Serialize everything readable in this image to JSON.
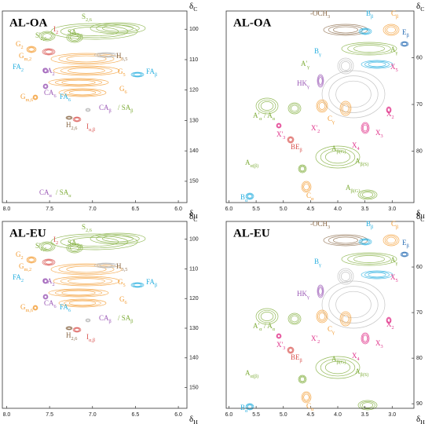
{
  "panels": [
    {
      "title": "AL-OA",
      "x_label": {
        "text": "δ",
        "sub": "H"
      },
      "y_label": {
        "text": "δ",
        "sub": "C"
      },
      "xlim": [
        8.05,
        5.9
      ],
      "ylim": [
        94,
        157
      ],
      "xticks": [
        {
          "value": 8,
          "label": "8.0"
        },
        {
          "value": 7.5,
          "label": "7.5"
        },
        {
          "value": 7,
          "label": "7.0"
        },
        {
          "value": 6.5,
          "label": "6.5"
        },
        {
          "value": 6,
          "label": "6.0"
        }
      ],
      "yticks": [
        100,
        110,
        120,
        130,
        140,
        150
      ],
      "labels": [
        {
          "text": "I",
          "sub": "2",
          "color": "#d9534f"
        },
        {
          "text": "SA",
          "sub": "2,6",
          "color": "#7fad3a"
        },
        {
          "text": "S",
          "sub": "2,6",
          "color": "#7fad3a"
        },
        {
          "text": "S'",
          "sub": "2,6",
          "color": "#7fad3a"
        },
        {
          "text": "G",
          "sub": "2",
          "color": "#f39c33"
        },
        {
          "text": "G",
          "sub": "m,2",
          "color": "#f39c33"
        },
        {
          "text": "FA",
          "sub": "2",
          "color": "#2ab0e0"
        },
        {
          "text": "CA",
          "sub": "2",
          "color": "#9b59b6"
        },
        {
          "text": "CA",
          "sub": "6",
          "color": "#9b59b6"
        },
        {
          "text": "FA",
          "sub": "6",
          "color": "#2ab0e0"
        },
        {
          "text": "H",
          "sub": "3,5",
          "color": "#8b6a48"
        },
        {
          "text": "G",
          "sub": "5",
          "color": "#f39c33"
        },
        {
          "text": "G",
          "sub": "6",
          "color": "#f39c33"
        },
        {
          "text": "FA",
          "sub": "β",
          "color": "#2ab0e0"
        },
        {
          "text": "G",
          "sub": "m,6",
          "color": "#f39c33"
        },
        {
          "text": "CA",
          "sub": "β",
          "color": "#9b59b6"
        },
        {
          "text": "/ SA",
          "sub": "β",
          "color": "#7fad3a"
        },
        {
          "text": "I",
          "sub": "α,β",
          "color": "#d9534f"
        },
        {
          "text": "H",
          "sub": "2,6",
          "color": "#8b6a48"
        },
        {
          "text": "CA",
          "sub": "α",
          "color": "#9b59b6"
        },
        {
          "text": "/ SA",
          "sub": "α",
          "color": "#7fad3a"
        }
      ]
    },
    {
      "title": "AL-OA",
      "x_label": {
        "text": "δ",
        "sub": "H"
      },
      "y_label": {
        "text": "δ",
        "sub": "C"
      },
      "xlim": [
        6.05,
        2.6
      ],
      "ylim": [
        50,
        91
      ],
      "xticks": [
        {
          "value": 6,
          "label": "6.0"
        },
        {
          "value": 5.5,
          "label": "5.5"
        },
        {
          "value": 5,
          "label": "5.0"
        },
        {
          "value": 4.5,
          "label": "4.5"
        },
        {
          "value": 4,
          "label": "4.0"
        },
        {
          "value": 3.5,
          "label": "3.5"
        },
        {
          "value": 3,
          "label": "3.0"
        }
      ],
      "yticks": [
        60,
        70,
        80
      ],
      "labels": [
        {
          "text": "-OCH",
          "sub": "3",
          "color": "#8b6a48"
        },
        {
          "text": "B",
          "sub": "β",
          "color": "#2ab0e0"
        },
        {
          "text": "C",
          "sub": "β",
          "color": "#f39c33"
        },
        {
          "text": "E",
          "sub": "β",
          "color": "#2c6fb5"
        },
        {
          "text": "B",
          "sub": "γ",
          "color": "#2ab0e0"
        },
        {
          "text": "A",
          "sub": "γ",
          "color": "#7fad3a"
        },
        {
          "text": "X",
          "sub": "5",
          "color": "#e0338a"
        },
        {
          "text": "A'",
          "sub": "γ",
          "color": "#7fad3a"
        },
        {
          "text": "HK",
          "sub": "γ",
          "color": "#9b59b6"
        },
        {
          "text": "A'",
          "sub": "α",
          "color": "#7fad3a"
        },
        {
          "text": "/ A",
          "sub": "α",
          "color": "#7fad3a"
        },
        {
          "text": "X",
          "sub": "2",
          "color": "#e0338a"
        },
        {
          "text": "C",
          "sub": "γ",
          "color": "#f39c33"
        },
        {
          "text": "X'",
          "sub": "2",
          "color": "#e0338a"
        },
        {
          "text": "X'",
          "sub": "3",
          "color": "#e0338a"
        },
        {
          "text": "X",
          "sub": "3",
          "color": "#e0338a"
        },
        {
          "text": "X",
          "sub": "4",
          "color": "#e0338a"
        },
        {
          "text": "BE",
          "sub": "β",
          "color": "#d9534f"
        },
        {
          "text": "A",
          "sub": "β(G)",
          "color": "#7fad3a"
        },
        {
          "text": "A",
          "sub": "β(S)",
          "color": "#7fad3a"
        },
        {
          "text": "A",
          "sub": "α(β)",
          "color": "#7fad3a"
        },
        {
          "text": "B",
          "sub": "α",
          "color": "#2ab0e0"
        },
        {
          "text": "C",
          "sub": "α",
          "color": "#f39c33"
        },
        {
          "text": "A",
          "sub": "β(G)",
          "color": "#7fad3a"
        }
      ]
    },
    {
      "title": "AL-EU",
      "x_label": {
        "text": "δ",
        "sub": "H"
      },
      "y_label": {
        "text": "δ",
        "sub": "C"
      },
      "xlim": [
        8.05,
        5.9
      ],
      "ylim": [
        94,
        157
      ],
      "xticks": [
        {
          "value": 8,
          "label": "8.0"
        },
        {
          "value": 7.5,
          "label": "7.5"
        },
        {
          "value": 7,
          "label": "7.0"
        },
        {
          "value": 6.5,
          "label": "6.5"
        },
        {
          "value": 6,
          "label": "6.0"
        }
      ],
      "yticks": [
        100,
        110,
        120,
        130,
        140,
        150
      ],
      "labels": [
        {
          "text": "I",
          "sub": "2",
          "color": "#d9534f"
        },
        {
          "text": "SA",
          "sub": "2,6",
          "color": "#7fad3a"
        },
        {
          "text": "S",
          "sub": "2,6",
          "color": "#7fad3a"
        },
        {
          "text": "S'",
          "sub": "2,6",
          "color": "#7fad3a"
        },
        {
          "text": "G",
          "sub": "2",
          "color": "#f39c33"
        },
        {
          "text": "G",
          "sub": "m,2",
          "color": "#f39c33"
        },
        {
          "text": "FA",
          "sub": "2",
          "color": "#2ab0e0"
        },
        {
          "text": "CA",
          "sub": "2",
          "color": "#9b59b6"
        },
        {
          "text": "CA",
          "sub": "6",
          "color": "#9b59b6"
        },
        {
          "text": "FA",
          "sub": "6",
          "color": "#2ab0e0"
        },
        {
          "text": "H",
          "sub": "3,5",
          "color": "#8b6a48"
        },
        {
          "text": "G",
          "sub": "5",
          "color": "#f39c33"
        },
        {
          "text": "G",
          "sub": "6",
          "color": "#f39c33"
        },
        {
          "text": "FA",
          "sub": "β",
          "color": "#2ab0e0"
        },
        {
          "text": "G",
          "sub": "m,6",
          "color": "#f39c33"
        },
        {
          "text": "CA",
          "sub": "β",
          "color": "#9b59b6"
        },
        {
          "text": "/ SA",
          "sub": "β",
          "color": "#7fad3a"
        },
        {
          "text": "I",
          "sub": "α,β",
          "color": "#d9534f"
        },
        {
          "text": "H",
          "sub": "2,6",
          "color": "#8b6a48"
        }
      ]
    },
    {
      "title": "AL-EU",
      "x_label": {
        "text": "δ",
        "sub": "H"
      },
      "y_label": {
        "text": "δ",
        "sub": "C"
      },
      "xlim": [
        6.05,
        2.6
      ],
      "ylim": [
        50,
        91
      ],
      "xticks": [
        {
          "value": 6,
          "label": "6.0"
        },
        {
          "value": 5.5,
          "label": "5.5"
        },
        {
          "value": 5,
          "label": "5.0"
        },
        {
          "value": 4.5,
          "label": "4.5"
        },
        {
          "value": 4,
          "label": "4.0"
        },
        {
          "value": 3.5,
          "label": "3.5"
        },
        {
          "value": 3,
          "label": "3.0"
        }
      ],
      "yticks": [
        60,
        70,
        80,
        90
      ],
      "labels": [
        {
          "text": "-OCH",
          "sub": "3",
          "color": "#8b6a48"
        },
        {
          "text": "B",
          "sub": "β",
          "color": "#2ab0e0"
        },
        {
          "text": "C",
          "sub": "β",
          "color": "#f39c33"
        },
        {
          "text": "E",
          "sub": "β",
          "color": "#2c6fb5"
        },
        {
          "text": "B",
          "sub": "γ",
          "color": "#2ab0e0"
        },
        {
          "text": "A",
          "sub": "γ",
          "color": "#7fad3a"
        },
        {
          "text": "X",
          "sub": "5",
          "color": "#e0338a"
        },
        {
          "text": "A'",
          "sub": "α",
          "color": "#7fad3a"
        },
        {
          "text": "HK",
          "sub": "γ",
          "color": "#9b59b6"
        },
        {
          "text": "/ A",
          "sub": "α",
          "color": "#7fad3a"
        },
        {
          "text": "X",
          "sub": "2",
          "color": "#e0338a"
        },
        {
          "text": "C",
          "sub": "γ",
          "color": "#f39c33"
        },
        {
          "text": "X'",
          "sub": "2",
          "color": "#e0338a"
        },
        {
          "text": "X'",
          "sub": "3",
          "color": "#e0338a"
        },
        {
          "text": "X",
          "sub": "3",
          "color": "#e0338a"
        },
        {
          "text": "X",
          "sub": "4",
          "color": "#e0338a"
        },
        {
          "text": "BE",
          "sub": "β",
          "color": "#d9534f"
        },
        {
          "text": "A",
          "sub": "β(G)",
          "color": "#7fad3a"
        },
        {
          "text": "A",
          "sub": "β(S)",
          "color": "#7fad3a"
        },
        {
          "text": "A",
          "sub": "α(β)",
          "color": "#7fad3a"
        },
        {
          "text": "B",
          "sub": "α",
          "color": "#2ab0e0"
        },
        {
          "text": "C",
          "sub": "α",
          "color": "#f39c33"
        }
      ]
    }
  ]
}
